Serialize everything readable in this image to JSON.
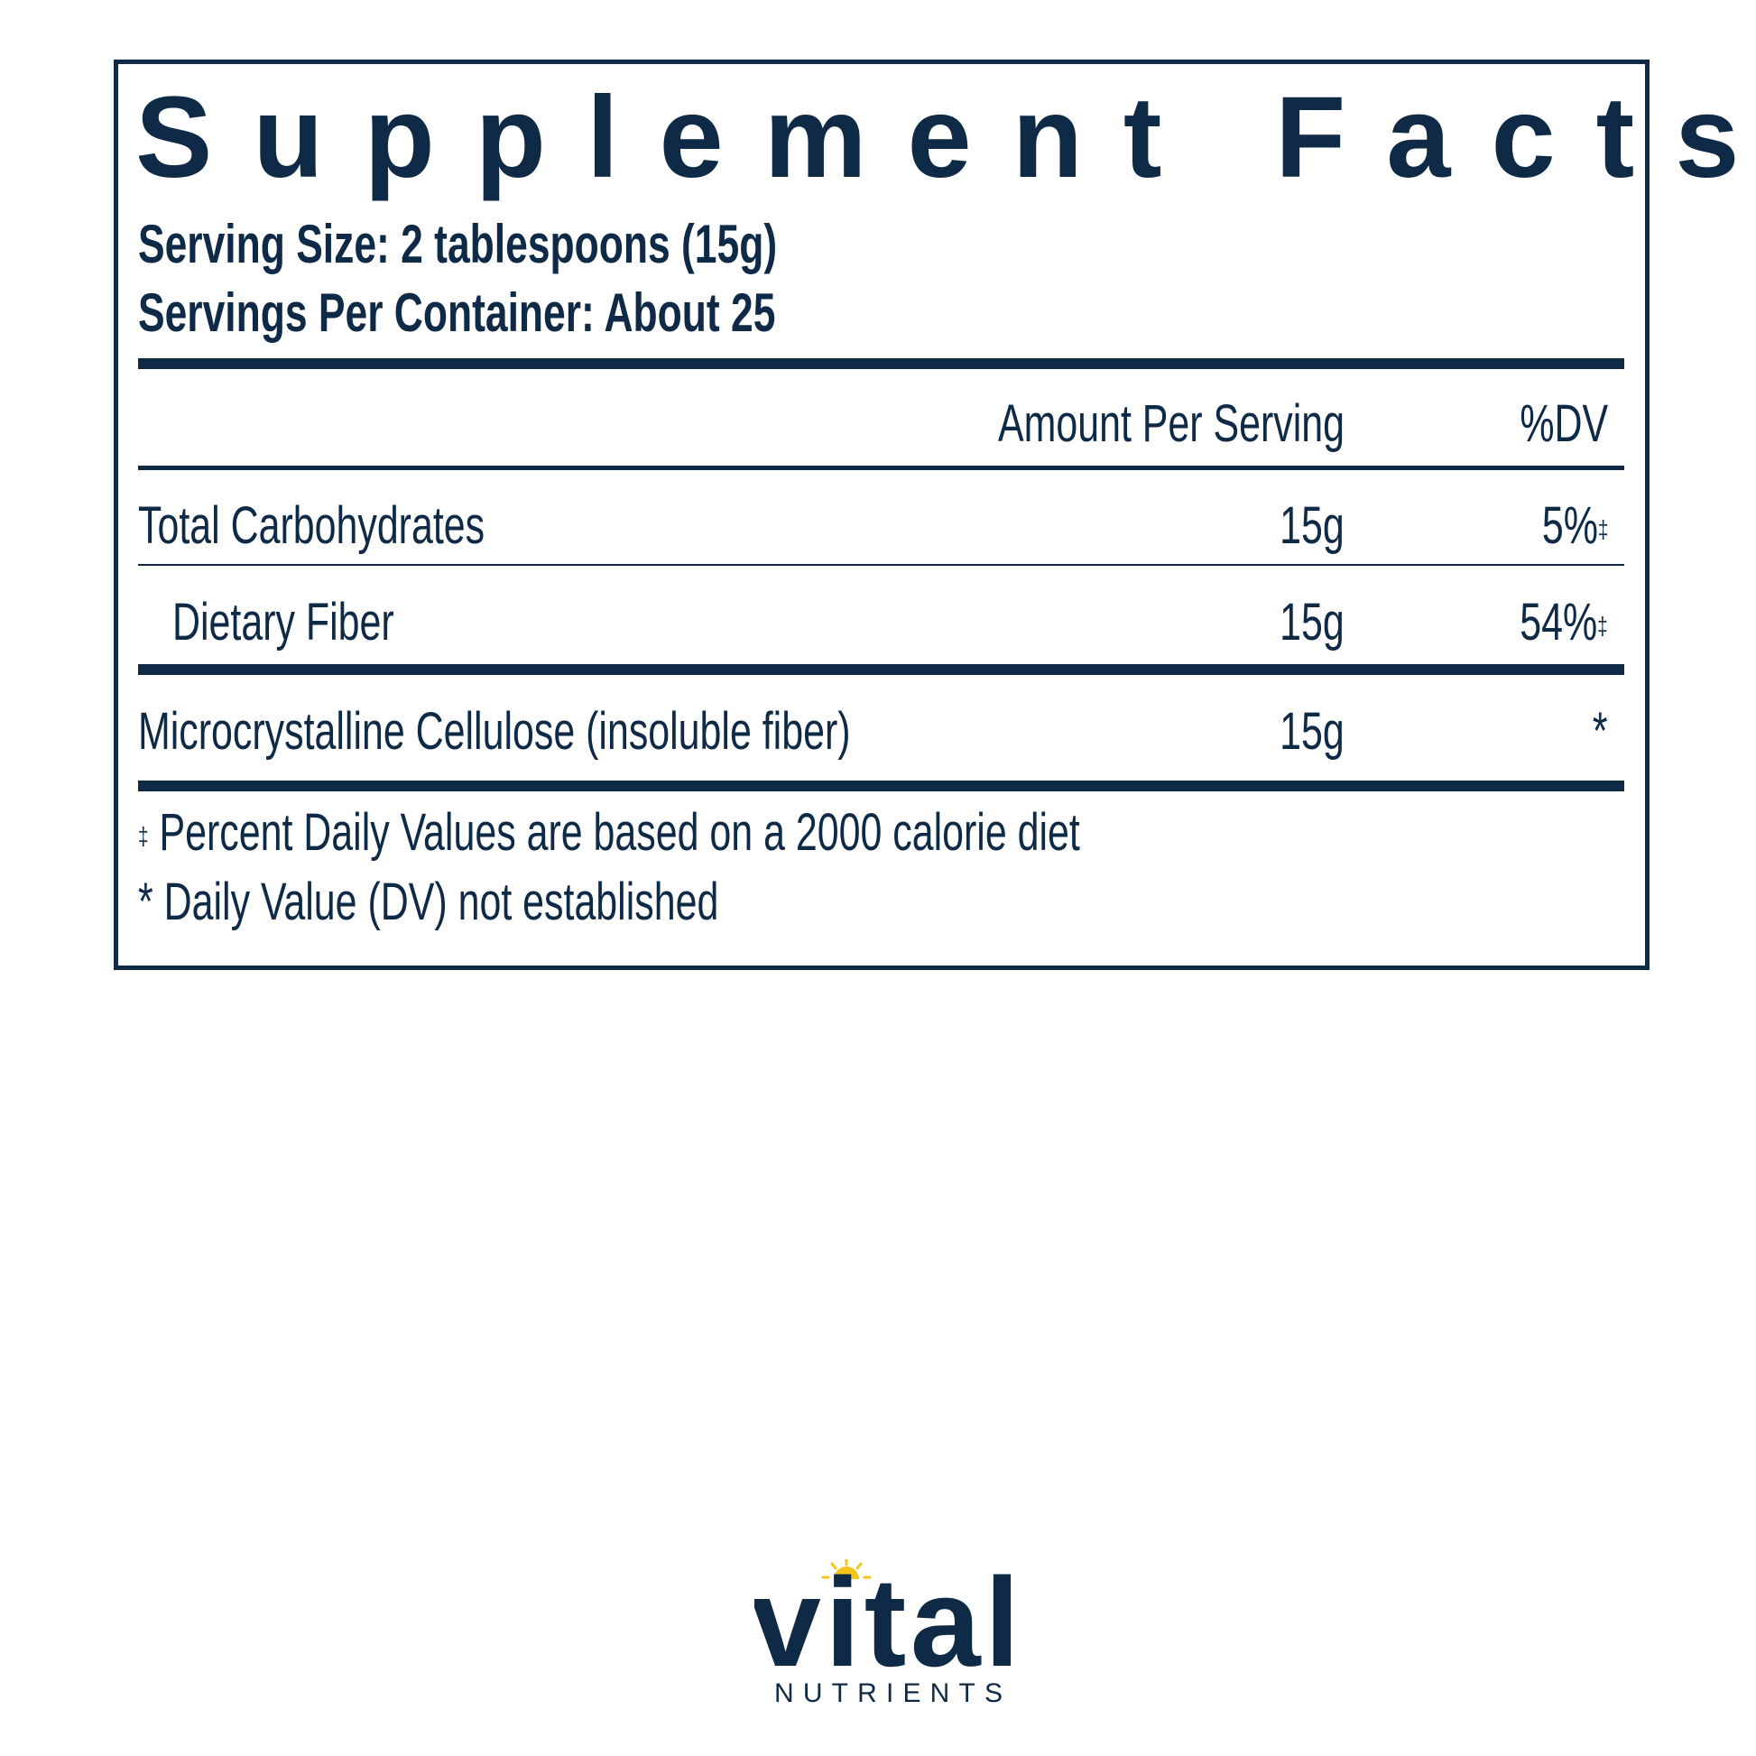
{
  "label": {
    "title": "Supplement Facts",
    "serving_size": "Serving Size: 2 tablespoons (15g)",
    "servings_per_container": "Servings Per Container: About 25",
    "header": {
      "amount": "Amount Per Serving",
      "dv": "%DV"
    },
    "rows": [
      {
        "name": "Total Carbohydrates",
        "amount": "15g",
        "dv": "5%",
        "dv_mark": "‡"
      },
      {
        "name": "Dietary Fiber",
        "amount": "15g",
        "dv": "54%",
        "dv_mark": "‡"
      },
      {
        "name": "Microcrystalline Cellulose (insoluble fiber)",
        "amount": "15g",
        "dv": "*",
        "dv_mark": ""
      }
    ],
    "footnotes": [
      {
        "mark": "‡",
        "text": " Percent Daily Values are based on a 2000 calorie diet"
      },
      {
        "mark": "*",
        "text": " Daily Value (DV) not established"
      }
    ]
  },
  "brand": {
    "name": "vital",
    "sub": "NUTRIENTS",
    "color": "#0e2a46",
    "accent": "#f5c518"
  }
}
